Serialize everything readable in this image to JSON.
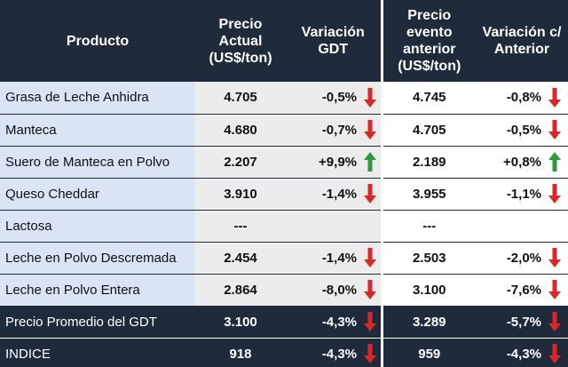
{
  "colors": {
    "header_bg": "#1f2a3b",
    "product_bg": "#dbe4f4",
    "mid_bg": "#ececec",
    "arrow_down": "#d7282a",
    "arrow_up": "#2a9a3c"
  },
  "headers": {
    "producto": "Producto",
    "precio_actual": "Precio\nActual\n(US$/ton)",
    "variacion_gdt": "Variación\nGDT",
    "precio_anterior": "Precio\nevento\nanterior\n(US$/ton)",
    "variacion_anterior": "Variación c/\nAnterior"
  },
  "rows": [
    {
      "producto": "Grasa de Leche Anhidra",
      "precio": "4.705",
      "var_gdt": "-0,5%",
      "arrow_gdt": "down-arrow-icon",
      "anterior": "4.745",
      "var_ant": "-0,8%",
      "arrow_ant": "down-arrow-icon"
    },
    {
      "producto": "Manteca",
      "precio": "4.680",
      "var_gdt": "-0,7%",
      "arrow_gdt": "down-arrow-icon",
      "anterior": "4.705",
      "var_ant": "-0,5%",
      "arrow_ant": "down-arrow-icon"
    },
    {
      "producto": "Suero de Manteca en Polvo",
      "precio": "2.207",
      "var_gdt": "+9,9%",
      "arrow_gdt": "up-arrow-icon",
      "anterior": "2.189",
      "var_ant": "+0,8%",
      "arrow_ant": "up-arrow-icon"
    },
    {
      "producto": "Queso Cheddar",
      "precio": "3.910",
      "var_gdt": "-1,4%",
      "arrow_gdt": "down-arrow-icon",
      "anterior": "3.955",
      "var_ant": "-1,1%",
      "arrow_ant": "down-arrow-icon"
    },
    {
      "producto": "Lactosa",
      "precio": "---",
      "var_gdt": "",
      "arrow_gdt": "",
      "anterior": "---",
      "var_ant": "",
      "arrow_ant": ""
    },
    {
      "producto": "Leche en Polvo Descremada",
      "precio": "2.454",
      "var_gdt": "-1,4%",
      "arrow_gdt": "down-arrow-icon",
      "anterior": "2.503",
      "var_ant": "-2,0%",
      "arrow_ant": "down-arrow-icon"
    },
    {
      "producto": "Leche en Polvo Entera",
      "precio": "2.864",
      "var_gdt": "-8,0%",
      "arrow_gdt": "down-arrow-icon",
      "anterior": "3.100",
      "var_ant": "-7,6%",
      "arrow_ant": "down-arrow-icon"
    }
  ],
  "summary": [
    {
      "producto": "Precio Promedio del GDT",
      "precio": "3.100",
      "var_gdt": "-4,3%",
      "arrow_gdt": "down-arrow-icon",
      "anterior": "3.289",
      "var_ant": "-5,7%",
      "arrow_ant": "down-arrow-icon"
    },
    {
      "producto": "INDICE",
      "precio": "918",
      "var_gdt": "-4,3%",
      "arrow_gdt": "down-arrow-icon",
      "anterior": "959",
      "var_ant": "-4,3%",
      "arrow_ant": "down-arrow-icon"
    }
  ]
}
